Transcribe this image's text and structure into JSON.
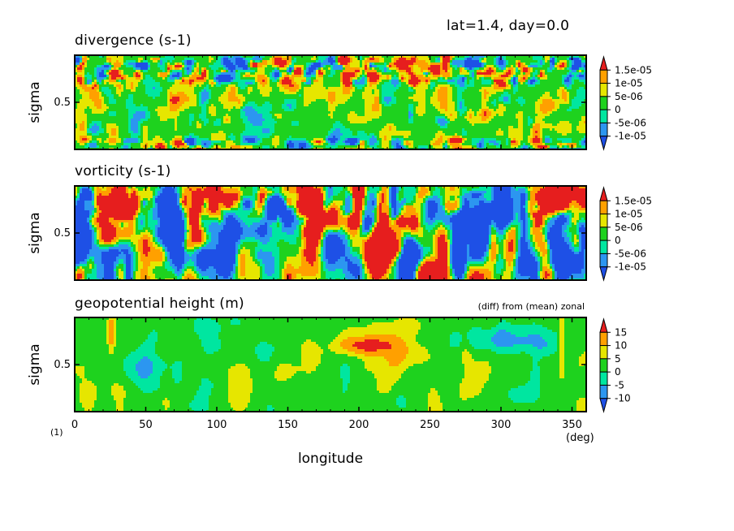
{
  "header": {
    "text": "lat=1.4, day=0.0"
  },
  "x_axis": {
    "label": "longitude",
    "unit": "(deg)",
    "ticks": [
      "0",
      "50",
      "100",
      "150",
      "200",
      "250",
      "300",
      "350"
    ],
    "tick_values": [
      0,
      50,
      100,
      150,
      200,
      250,
      300,
      350
    ],
    "range": [
      0,
      360
    ]
  },
  "footnote": "(1)",
  "colors": {
    "levels": [
      "#1e50e6",
      "#2c96f0",
      "#00e6a0",
      "#1ed21e",
      "#e6e600",
      "#ffa000",
      "#e61e1e"
    ],
    "names": [
      "blue",
      "lightblue",
      "teal",
      "green",
      "yellow",
      "orange",
      "red"
    ]
  },
  "panels": [
    {
      "id": "divergence",
      "title": "divergence (s-1)",
      "subtitle": "",
      "ylabel": "sigma",
      "ytick": "0.5",
      "colorbar": [
        "1.5e-05",
        "1e-05",
        "5e-06",
        "0",
        "-5e-06",
        "-1e-05"
      ]
    },
    {
      "id": "vorticity",
      "title": "vorticity (s-1)",
      "subtitle": "",
      "ylabel": "sigma",
      "ytick": "0.5",
      "colorbar": [
        "1.5e-05",
        "1e-05",
        "5e-06",
        "0",
        "-5e-06",
        "-1e-05"
      ]
    },
    {
      "id": "geopotential",
      "title": "geopotential height (m)",
      "subtitle": "(diff) from (mean) zonal",
      "ylabel": "sigma",
      "ytick": "0.5",
      "colorbar": [
        "15",
        "10",
        "5",
        "0",
        "-5",
        "-10"
      ]
    }
  ],
  "chart_data": [
    {
      "type": "heatmap",
      "title": "divergence (s-1)",
      "xlabel": "longitude",
      "ylabel": "sigma",
      "xlim": [
        0,
        360
      ],
      "ylim": [
        0,
        1
      ],
      "levels": [
        -1.5e-05,
        -1e-05,
        -5e-06,
        0,
        5e-06,
        1e-05,
        1.5e-05
      ],
      "z": "small-scale mixed field; near 0 in mid levels, stronger +/- cells near sigma ~0.8-0.95 and near sigma ~0.05"
    },
    {
      "type": "heatmap",
      "title": "vorticity (s-1)",
      "xlabel": "longitude",
      "ylabel": "sigma",
      "xlim": [
        0,
        360
      ],
      "ylim": [
        0,
        1
      ],
      "levels": [
        -1.5e-05,
        -1e-05,
        -5e-06,
        0,
        5e-06,
        1e-05,
        1.5e-05
      ],
      "z": "alternating +/- vertical structures across all longitudes, magnitudes up to ~1.5e-05"
    },
    {
      "type": "heatmap",
      "title": "geopotential height (m)",
      "subtitle": "(diff) from (mean) zonal",
      "xlabel": "longitude",
      "ylabel": "sigma",
      "xlim": [
        0,
        360
      ],
      "ylim": [
        0,
        1
      ],
      "levels": [
        -15,
        -10,
        -5,
        0,
        5,
        10,
        15
      ],
      "features": [
        {
          "lon": [
            175,
            230
          ],
          "sigma": [
            0.55,
            0.85
          ],
          "value": 15
        },
        {
          "lon": [
            150,
            260
          ],
          "sigma": [
            0.35,
            0.95
          ],
          "value": 7
        },
        {
          "lon": [
            260,
            340
          ],
          "sigma": [
            0.55,
            0.95
          ],
          "value": -10
        },
        {
          "lon": [
            20,
            30
          ],
          "sigma": [
            0.55,
            1.0
          ],
          "value": 10
        },
        {
          "lon": [
            340,
            345
          ],
          "sigma": [
            0.3,
            1.0
          ],
          "value": 10
        }
      ]
    }
  ]
}
